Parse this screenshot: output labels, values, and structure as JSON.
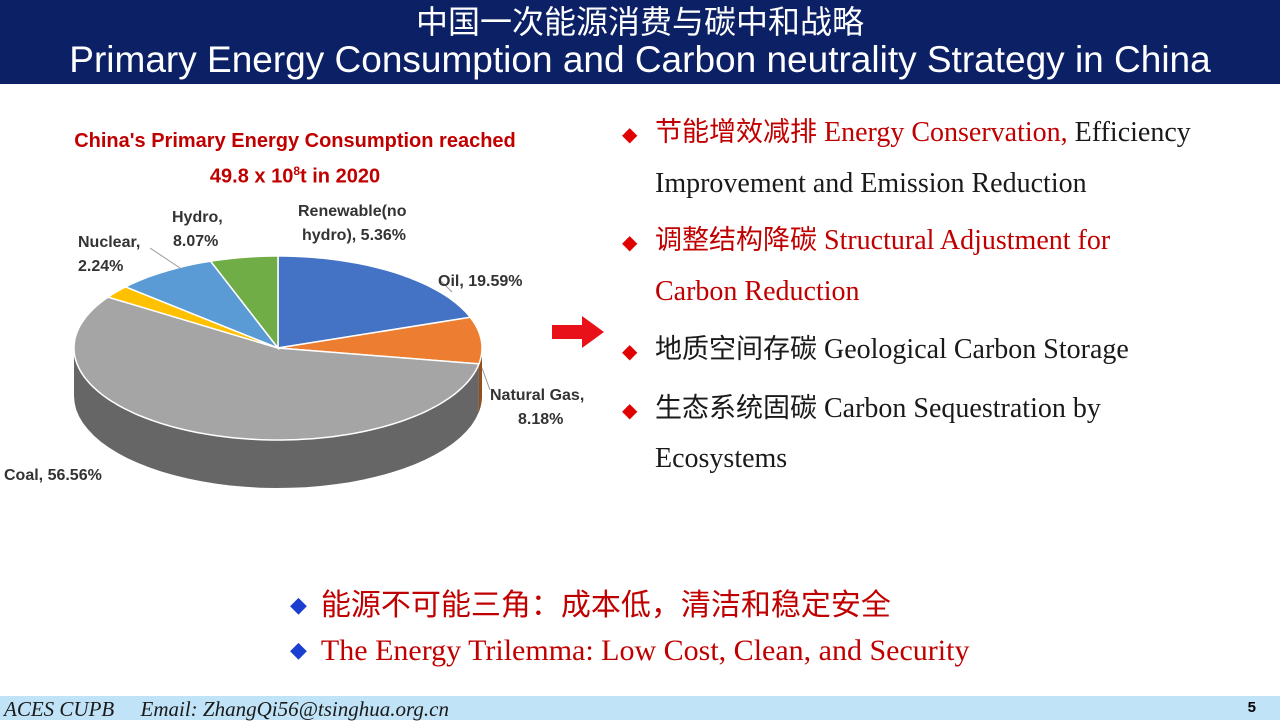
{
  "header": {
    "title_zh": "中国一次能源消费与碳中和战略",
    "title_en": "Primary Energy Consumption and Carbon neutrality Strategy in China"
  },
  "chart_data": {
    "type": "pie",
    "title_line1": "China's Primary Energy Consumption reached",
    "title_line2_pre": "49.8 x 10",
    "title_line2_sup": "8",
    "title_line2_post": "t in 2020",
    "slices": [
      {
        "name": "Oil",
        "value": 19.59,
        "label_line1": "Oil, 19.59%",
        "label_line2": "",
        "color": "#4472c4"
      },
      {
        "name": "Natural Gas",
        "value": 8.18,
        "label_line1": "Natural Gas,",
        "label_line2": "8.18%",
        "color": "#ed7d31"
      },
      {
        "name": "Coal",
        "value": 56.56,
        "label_line1": "Coal, 56.56%",
        "label_line2": "",
        "color": "#a5a5a5"
      },
      {
        "name": "Nuclear",
        "value": 2.24,
        "label_line1": "Nuclear,",
        "label_line2": "2.24%",
        "color": "#ffc000"
      },
      {
        "name": "Hydro",
        "value": 8.07,
        "label_line1": "Hydro,",
        "label_line2": "8.07%",
        "color": "#5b9bd5"
      },
      {
        "name": "Renewable(no hydro)",
        "value": 5.36,
        "label_line1": "Renewable(no",
        "label_line2": "hydro), 5.36%",
        "color": "#70ad47"
      }
    ]
  },
  "strategies": [
    {
      "zh": "节能增效减排",
      "en_red": "Energy Conservation,",
      "en_rest": " Efficiency",
      "line2": "Improvement and Emission Reduction"
    },
    {
      "zh": "调整结构降碳",
      "en_red": "Structural Adjustment for",
      "en_rest": "",
      "line2": "Carbon Reduction"
    },
    {
      "zh": "地质空间存碳",
      "en_red": "",
      "en_rest": "Geological Carbon Storage",
      "line2": ""
    },
    {
      "zh": "生态系统固碳",
      "en_red": "",
      "en_rest": "Carbon Sequestration by",
      "line2": "Ecosystems"
    }
  ],
  "trilemma": {
    "zh": "能源不可能三角：成本低，清洁和稳定安全",
    "en": "The Energy Trilemma: Low Cost, Clean, and Security"
  },
  "footer": {
    "org": "ACES CUPB",
    "email": "Email: ZhangQi56@tsinghua.org.cn",
    "page": "5"
  }
}
